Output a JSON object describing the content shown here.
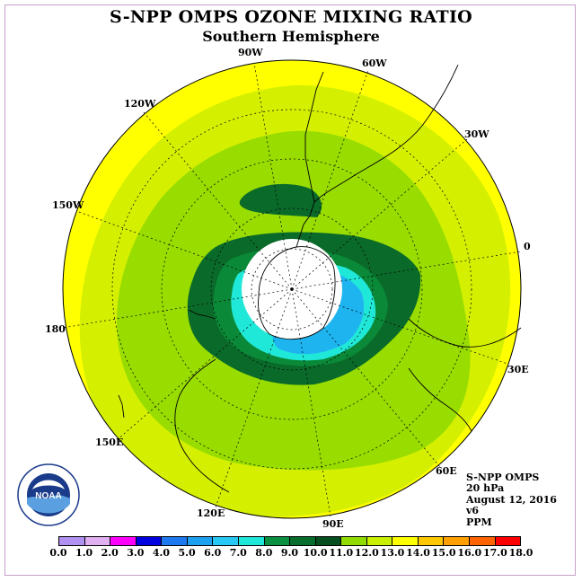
{
  "title": "S-NPP OMPS OZONE MIXING RATIO",
  "subtitle": "Southern Hemisphere",
  "longitude_labels": [
    "90W",
    "60W",
    "30W",
    "0",
    "30E",
    "60E",
    "90E",
    "120E",
    "150E",
    "180",
    "150W",
    "120W"
  ],
  "info": {
    "instrument": "S-NPP OMPS",
    "level": "20 hPa",
    "date": "August 12, 2016",
    "version": "v6",
    "units": "PPM"
  },
  "logo": {
    "name": "noaa-logo",
    "text": "NOAA"
  },
  "colorbar": {
    "ticks": [
      "0.0",
      "1.0",
      "2.0",
      "3.0",
      "4.0",
      "5.0",
      "6.0",
      "7.0",
      "8.0",
      "9.0",
      "10.0",
      "11.0",
      "12.0",
      "13.0",
      "14.0",
      "15.0",
      "16.0",
      "17.0",
      "18.0"
    ],
    "colors": [
      "#b090f0",
      "#e0b0f0",
      "#ff00ff",
      "#0000e0",
      "#1e78f0",
      "#1ea0f0",
      "#28c8f5",
      "#20e8d8",
      "#0a9040",
      "#076d2d",
      "#064d20",
      "#90dc00",
      "#c8f000",
      "#ffff00",
      "#ffc800",
      "#ffa000",
      "#ff6400",
      "#ff0000",
      "#905030"
    ]
  },
  "map_colors": {
    "yellow": "#ffff00",
    "yellow_green": "#d4f000",
    "light_green": "#98dc00",
    "dark_green": "#0a6a2a",
    "medium_green": "#0a8a38",
    "cyan": "#20e8d8",
    "light_blue": "#1eb4f0"
  }
}
